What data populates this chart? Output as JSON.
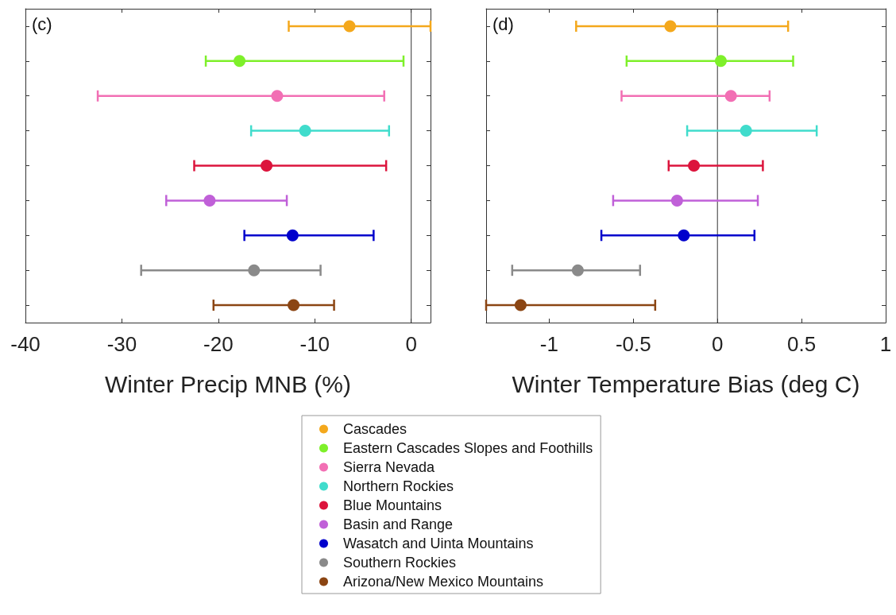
{
  "chart_data": [
    {
      "type": "scatter",
      "orientation": "horizontal",
      "xlabel": "Winter Precip MNB (%)",
      "annotations": [
        "(c)"
      ],
      "categories": [
        null,
        null,
        null,
        null,
        null,
        null,
        null,
        null,
        null
      ],
      "xlim": [
        -40,
        2
      ],
      "xticks": [
        -40,
        -30,
        -20,
        -10,
        0
      ],
      "grid": false,
      "legend": "bottom",
      "marker": "circle",
      "ref_lines": [
        {
          "axis": "x",
          "value": 0,
          "color": "#333333"
        }
      ],
      "series": [
        {
          "name": "Cascades",
          "color": "#f4a81c",
          "values": [
            -6.4,
            null,
            null,
            null,
            null,
            null,
            null,
            null,
            null
          ],
          "errors": [
            [
              -12.7,
              2
            ],
            null,
            null,
            null,
            null,
            null,
            null,
            null,
            null
          ]
        },
        {
          "name": "Eastern Cascades Slopes and Foothills",
          "color": "#7ef02a",
          "values": [
            null,
            -17.8,
            null,
            null,
            null,
            null,
            null,
            null,
            null
          ],
          "errors": [
            null,
            [
              -21.3,
              -0.8
            ],
            null,
            null,
            null,
            null,
            null,
            null,
            null
          ]
        },
        {
          "name": "Sierra Nevada",
          "color": "#f26fb4",
          "values": [
            null,
            null,
            -13.9,
            null,
            null,
            null,
            null,
            null,
            null
          ],
          "errors": [
            null,
            null,
            [
              -32.5,
              -2.8
            ],
            null,
            null,
            null,
            null,
            null,
            null
          ]
        },
        {
          "name": "Northern Rockies",
          "color": "#40dccc",
          "values": [
            null,
            null,
            null,
            -11.0,
            null,
            null,
            null,
            null,
            null
          ],
          "errors": [
            null,
            null,
            null,
            [
              -16.6,
              -2.3
            ],
            null,
            null,
            null,
            null,
            null
          ]
        },
        {
          "name": "Blue Mountains",
          "color": "#dc143c",
          "values": [
            null,
            null,
            null,
            null,
            -15.0,
            null,
            null,
            null,
            null
          ],
          "errors": [
            null,
            null,
            null,
            null,
            [
              -22.5,
              -2.6
            ],
            null,
            null,
            null,
            null
          ]
        },
        {
          "name": "Basin and Range",
          "color": "#c060d8",
          "values": [
            null,
            null,
            null,
            null,
            null,
            -20.9,
            null,
            null,
            null
          ],
          "errors": [
            null,
            null,
            null,
            null,
            null,
            [
              -25.4,
              -12.9
            ],
            null,
            null,
            null
          ]
        },
        {
          "name": "Wasatch and Uinta Mountains",
          "color": "#0000cc",
          "values": [
            null,
            null,
            null,
            null,
            null,
            null,
            -12.3,
            null,
            null
          ],
          "errors": [
            null,
            null,
            null,
            null,
            null,
            null,
            [
              -17.3,
              -3.9
            ],
            null,
            null
          ]
        },
        {
          "name": "Southern Rockies",
          "color": "#8a8a8a",
          "values": [
            null,
            null,
            null,
            null,
            null,
            null,
            null,
            -16.3,
            null
          ],
          "errors": [
            null,
            null,
            null,
            null,
            null,
            null,
            null,
            [
              -28.0,
              -9.4
            ],
            null
          ]
        },
        {
          "name": "Arizona/New Mexico Mountains",
          "color": "#8b4513",
          "values": [
            null,
            null,
            null,
            null,
            null,
            null,
            null,
            null,
            -12.2
          ],
          "errors": [
            null,
            null,
            null,
            null,
            null,
            null,
            null,
            null,
            [
              -20.5,
              -8.0
            ]
          ]
        }
      ]
    },
    {
      "type": "scatter",
      "orientation": "horizontal",
      "xlabel": "Winter Temperature Bias (deg C)",
      "annotations": [
        "(d)"
      ],
      "categories": [
        null,
        null,
        null,
        null,
        null,
        null,
        null,
        null,
        null
      ],
      "xlim": [
        -1.375,
        1
      ],
      "xticks": [
        -1,
        -0.5,
        0,
        0.5,
        1
      ],
      "grid": false,
      "marker": "circle",
      "ref_lines": [
        {
          "axis": "x",
          "value": 0,
          "color": "#333333"
        }
      ],
      "series": [
        {
          "color": "#f4a81c",
          "values": [
            -0.28,
            null,
            null,
            null,
            null,
            null,
            null,
            null,
            null
          ],
          "errors": [
            [
              -0.84,
              0.42
            ],
            null,
            null,
            null,
            null,
            null,
            null,
            null,
            null
          ]
        },
        {
          "color": "#7ef02a",
          "values": [
            null,
            0.02,
            null,
            null,
            null,
            null,
            null,
            null,
            null
          ],
          "errors": [
            null,
            [
              -0.54,
              0.45
            ],
            null,
            null,
            null,
            null,
            null,
            null,
            null
          ]
        },
        {
          "color": "#f26fb4",
          "values": [
            null,
            null,
            0.08,
            null,
            null,
            null,
            null,
            null,
            null
          ],
          "errors": [
            null,
            null,
            [
              -0.57,
              0.31
            ],
            null,
            null,
            null,
            null,
            null,
            null
          ]
        },
        {
          "color": "#40dccc",
          "values": [
            null,
            null,
            null,
            0.17,
            null,
            null,
            null,
            null,
            null
          ],
          "errors": [
            null,
            null,
            null,
            [
              -0.18,
              0.59
            ],
            null,
            null,
            null,
            null,
            null
          ]
        },
        {
          "color": "#dc143c",
          "values": [
            null,
            null,
            null,
            null,
            -0.14,
            null,
            null,
            null,
            null
          ],
          "errors": [
            null,
            null,
            null,
            null,
            [
              -0.29,
              0.27
            ],
            null,
            null,
            null,
            null
          ]
        },
        {
          "color": "#c060d8",
          "values": [
            null,
            null,
            null,
            null,
            null,
            -0.24,
            null,
            null,
            null
          ],
          "errors": [
            null,
            null,
            null,
            null,
            null,
            [
              -0.62,
              0.24
            ],
            null,
            null,
            null
          ]
        },
        {
          "color": "#0000cc",
          "values": [
            null,
            null,
            null,
            null,
            null,
            null,
            -0.2,
            null,
            null
          ],
          "errors": [
            null,
            null,
            null,
            null,
            null,
            null,
            [
              -0.69,
              0.22
            ],
            null,
            null
          ]
        },
        {
          "color": "#8a8a8a",
          "values": [
            null,
            null,
            null,
            null,
            null,
            null,
            null,
            -0.83,
            null
          ],
          "errors": [
            null,
            null,
            null,
            null,
            null,
            null,
            null,
            [
              -1.22,
              -0.46
            ],
            null
          ]
        },
        {
          "color": "#8b4513",
          "values": [
            null,
            null,
            null,
            null,
            null,
            null,
            null,
            null,
            -1.17
          ],
          "errors": [
            null,
            null,
            null,
            null,
            null,
            null,
            null,
            null,
            [
              -1.375,
              -0.37
            ]
          ]
        }
      ]
    }
  ]
}
